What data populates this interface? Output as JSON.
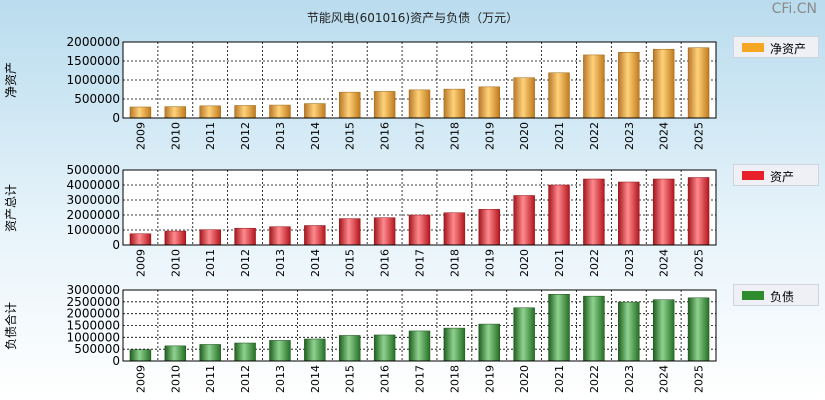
{
  "title": "节能风电(601016)资产与负债（万元）",
  "watermark": "CFi.CN",
  "chart_data": [
    {
      "type": "bar",
      "ylabel": "净资产",
      "legend": "净资产",
      "color": "#f5a623",
      "ylim": [
        0,
        2000000
      ],
      "yticks": [
        0,
        500000,
        1000000,
        1500000,
        2000000
      ],
      "categories": [
        "2009",
        "2010",
        "2011",
        "2012",
        "2013",
        "2014",
        "2015",
        "2016",
        "2017",
        "2018",
        "2019",
        "2020",
        "2021",
        "2022",
        "2023",
        "2024",
        "2025"
      ],
      "values": [
        290000,
        300000,
        320000,
        330000,
        340000,
        380000,
        680000,
        700000,
        740000,
        760000,
        820000,
        1060000,
        1190000,
        1660000,
        1730000,
        1810000,
        1850000
      ]
    },
    {
      "type": "bar",
      "ylabel": "资产总计",
      "legend": "资产",
      "color": "#e8202a",
      "ylim": [
        0,
        5000000
      ],
      "yticks": [
        0,
        1000000,
        2000000,
        3000000,
        4000000,
        5000000
      ],
      "categories": [
        "2009",
        "2010",
        "2011",
        "2012",
        "2013",
        "2014",
        "2015",
        "2016",
        "2017",
        "2018",
        "2019",
        "2020",
        "2021",
        "2022",
        "2023",
        "2024",
        "2025"
      ],
      "values": [
        750000,
        930000,
        1020000,
        1120000,
        1220000,
        1300000,
        1760000,
        1820000,
        2000000,
        2150000,
        2380000,
        3300000,
        4000000,
        4400000,
        4200000,
        4400000,
        4500000
      ]
    },
    {
      "type": "bar",
      "ylabel": "负债合计",
      "legend": "负债",
      "color": "#2e8b2e",
      "ylim": [
        0,
        3000000
      ],
      "yticks": [
        0,
        500000,
        1000000,
        1500000,
        2000000,
        2500000,
        3000000
      ],
      "categories": [
        "2009",
        "2010",
        "2011",
        "2012",
        "2013",
        "2014",
        "2015",
        "2016",
        "2017",
        "2018",
        "2019",
        "2020",
        "2021",
        "2022",
        "2023",
        "2024",
        "2025"
      ],
      "values": [
        480000,
        640000,
        700000,
        760000,
        870000,
        930000,
        1080000,
        1100000,
        1270000,
        1390000,
        1560000,
        2250000,
        2820000,
        2740000,
        2490000,
        2590000,
        2670000
      ]
    }
  ]
}
